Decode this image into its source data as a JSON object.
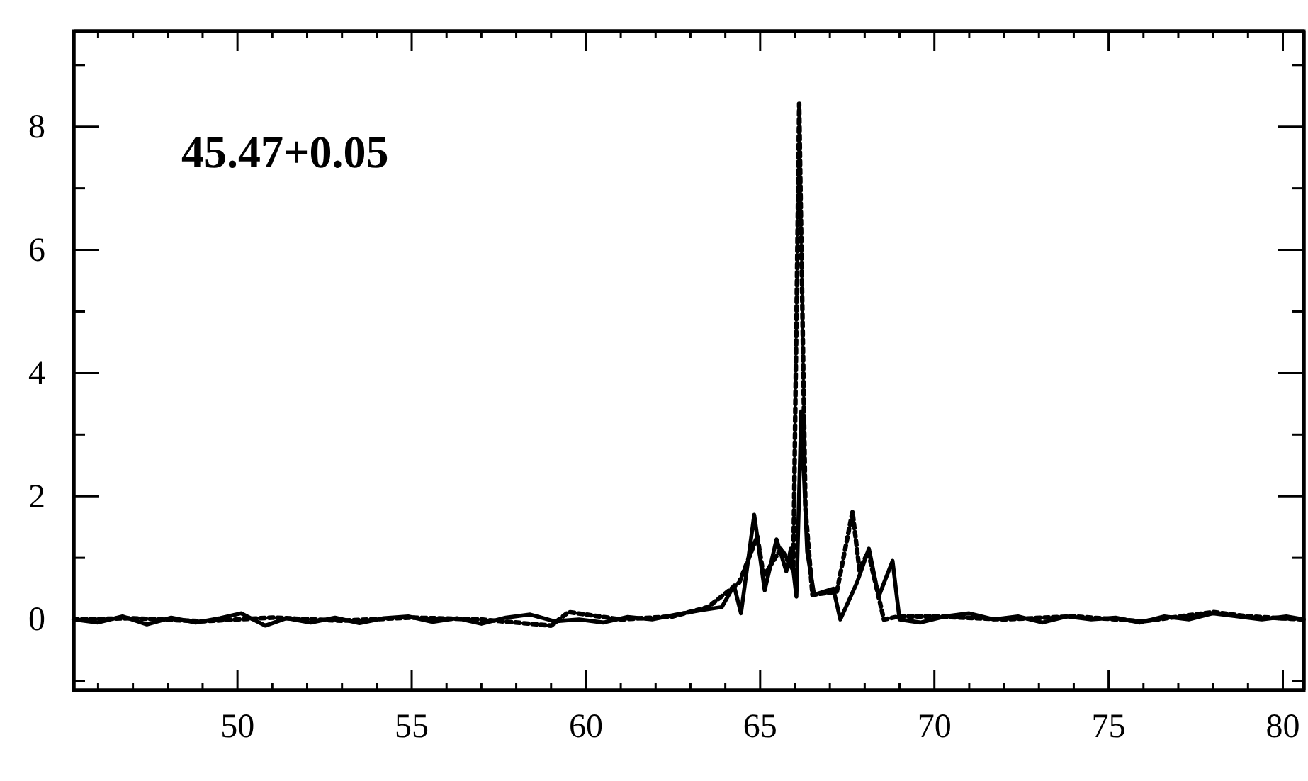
{
  "chart_data": {
    "type": "line",
    "xlim": [
      45.3,
      80.6
    ],
    "ylim": [
      -1.15,
      9.55
    ],
    "xticks": [
      {
        "value": 46,
        "label": null
      },
      {
        "value": 47,
        "label": null
      },
      {
        "value": 48,
        "label": null
      },
      {
        "value": 49,
        "label": null
      },
      50,
      {
        "value": 51,
        "label": null
      },
      {
        "value": 52,
        "label": null
      },
      {
        "value": 53,
        "label": null
      },
      {
        "value": 54,
        "label": null
      },
      55,
      {
        "value": 56,
        "label": null
      },
      {
        "value": 57,
        "label": null
      },
      {
        "value": 58,
        "label": null
      },
      {
        "value": 59,
        "label": null
      },
      60,
      {
        "value": 61,
        "label": null
      },
      {
        "value": 62,
        "label": null
      },
      {
        "value": 63,
        "label": null
      },
      {
        "value": 64,
        "label": null
      },
      65,
      {
        "value": 66,
        "label": null
      },
      {
        "value": 67,
        "label": null
      },
      {
        "value": 68,
        "label": null
      },
      {
        "value": 69,
        "label": null
      },
      70,
      {
        "value": 71,
        "label": null
      },
      {
        "value": 72,
        "label": null
      },
      {
        "value": 73,
        "label": null
      },
      {
        "value": 74,
        "label": null
      },
      75,
      {
        "value": 76,
        "label": null
      },
      {
        "value": 77,
        "label": null
      },
      {
        "value": 78,
        "label": null
      },
      {
        "value": 79,
        "label": null
      },
      80
    ],
    "yticks": [
      {
        "value": -1,
        "label": null
      },
      0,
      {
        "value": 1,
        "label": null
      },
      2,
      {
        "value": 3,
        "label": null
      },
      4,
      {
        "value": 5,
        "label": null
      },
      6,
      {
        "value": 7,
        "label": null
      },
      8,
      {
        "value": 9,
        "label": null
      }
    ],
    "marker": "none",
    "annotations": [
      "45.47+0.05"
    ],
    "series": [
      {
        "color": "#000000",
        "line_style": "solid",
        "x": [
          45.3,
          46,
          46.7,
          47.4,
          48.1,
          48.8,
          49.5,
          50.1,
          50.8,
          51.4,
          52.1,
          52.8,
          53.5,
          54.2,
          54.9,
          55.6,
          56.3,
          57,
          57.7,
          58.4,
          59.1,
          59.8,
          60.5,
          61.2,
          61.9,
          62.6,
          63.3,
          63.9,
          64.25,
          64.45,
          64.83,
          65.13,
          65.47,
          65.75,
          65.88,
          66.04,
          66.18,
          66.35,
          66.55,
          67.1,
          67.3,
          67.78,
          68.12,
          68.4,
          68.8,
          69,
          69.6,
          70.3,
          71,
          71.7,
          72.4,
          73.1,
          73.8,
          74.5,
          75.2,
          75.9,
          76.6,
          77.3,
          78,
          78.7,
          79.4,
          80.1,
          80.6
        ],
        "values": [
          0,
          -0.05,
          0.05,
          -0.08,
          0.03,
          -0.05,
          0.02,
          0.1,
          -0.1,
          0.02,
          -0.05,
          0.03,
          -0.06,
          0.02,
          0.05,
          -0.04,
          0.02,
          -0.07,
          0.03,
          0.08,
          -0.03,
          0,
          -0.05,
          0.04,
          0,
          0.08,
          0.15,
          0.2,
          0.55,
          0.1,
          1.7,
          0.47,
          1.3,
          0.78,
          1.15,
          0.37,
          3.38,
          1.1,
          0.4,
          0.5,
          0,
          0.6,
          1.15,
          0.37,
          0.95,
          0,
          -0.05,
          0.05,
          0.1,
          0,
          0.05,
          -0.05,
          0.05,
          0,
          0.03,
          -0.05,
          0.05,
          0,
          0.1,
          0.05,
          0,
          0.05,
          0
        ]
      },
      {
        "color": "#000000",
        "line_style": "dotted",
        "x": [
          45.3,
          47,
          49,
          51,
          53,
          55,
          57,
          59,
          59.5,
          61,
          62.5,
          63.5,
          64.4,
          64.92,
          65.1,
          65.6,
          65.95,
          66.12,
          66.3,
          66.5,
          67.2,
          67.65,
          67.85,
          68.1,
          68.55,
          69,
          70,
          72,
          74,
          76,
          78,
          79,
          80.6
        ],
        "values": [
          0,
          0.02,
          -0.03,
          0.03,
          -0.02,
          0.03,
          0,
          -0.1,
          0.12,
          0,
          0.05,
          0.2,
          0.6,
          1.35,
          0.7,
          1.15,
          0.8,
          8.37,
          1.8,
          0.4,
          0.45,
          1.75,
          0.8,
          1.1,
          0,
          0.05,
          0.05,
          0,
          0.05,
          -0.03,
          0.12,
          0.05,
          0
        ]
      }
    ]
  }
}
